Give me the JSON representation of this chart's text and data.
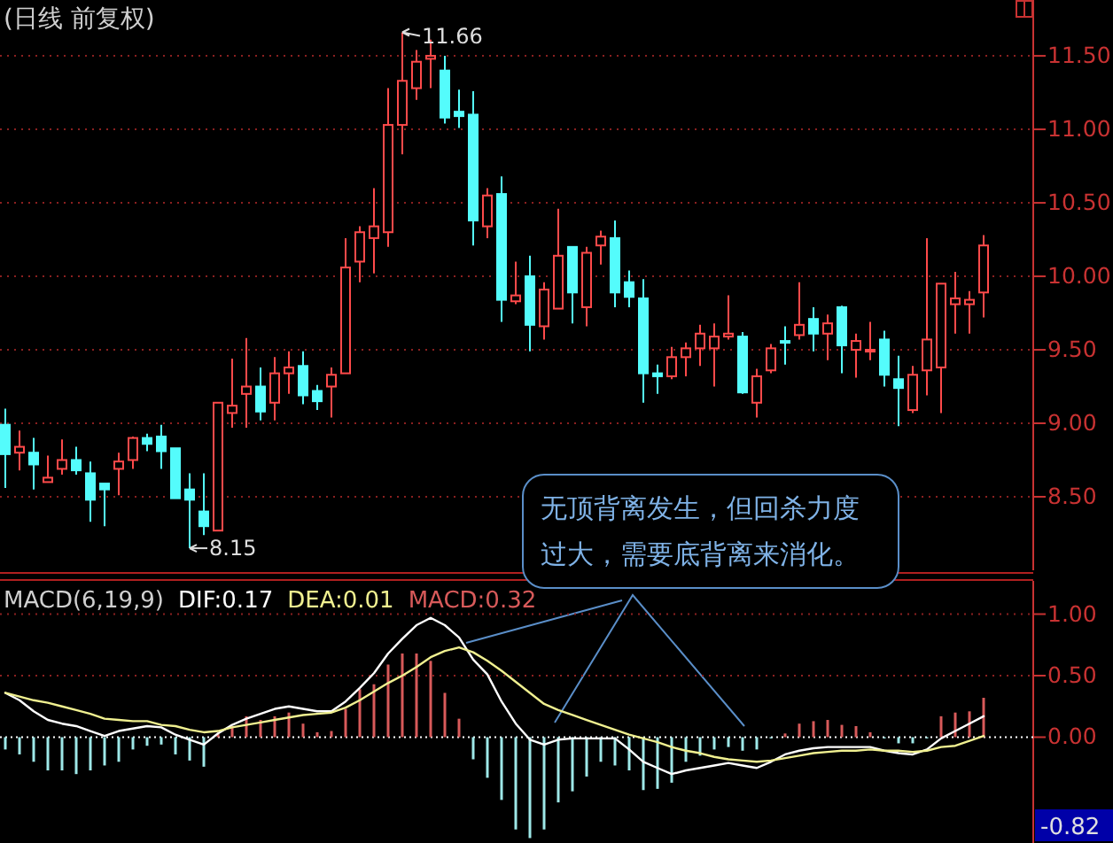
{
  "chart_data": [
    {
      "type": "candlestick",
      "title": "(日线 前复权)",
      "categories": [
        null,
        null,
        null,
        null,
        null,
        null,
        null,
        null,
        null,
        null,
        null,
        null,
        null,
        null,
        null,
        null,
        null,
        null,
        null,
        null,
        null,
        null,
        null,
        null,
        null,
        null,
        null,
        null,
        null,
        null,
        null,
        null,
        null,
        null,
        null,
        null,
        null,
        null,
        null,
        null,
        null,
        null,
        null,
        null,
        null,
        null,
        null,
        null,
        null,
        null,
        null,
        null,
        null,
        null,
        null,
        null,
        null,
        null,
        null,
        null,
        null,
        null,
        null,
        null,
        null,
        null,
        null,
        null,
        null,
        null
      ],
      "ohlc": [
        [
          8.99,
          9.1,
          8.56,
          8.79
        ],
        [
          8.8,
          8.95,
          8.68,
          8.84
        ],
        [
          8.8,
          8.9,
          8.55,
          8.72
        ],
        [
          8.6,
          8.78,
          8.6,
          8.63
        ],
        [
          8.69,
          8.89,
          8.65,
          8.75
        ],
        [
          8.75,
          8.84,
          8.65,
          8.68
        ],
        [
          8.66,
          8.74,
          8.33,
          8.48
        ],
        [
          8.59,
          8.59,
          8.3,
          8.55
        ],
        [
          8.69,
          8.8,
          8.51,
          8.74
        ],
        [
          8.75,
          8.91,
          8.69,
          8.9
        ],
        [
          8.9,
          8.93,
          8.81,
          8.86
        ],
        [
          8.91,
          8.99,
          8.69,
          8.81
        ],
        [
          8.83,
          8.83,
          8.49,
          8.49
        ],
        [
          8.55,
          8.66,
          8.15,
          8.48
        ],
        [
          8.4,
          8.66,
          8.24,
          8.3
        ],
        [
          8.27,
          9.14,
          8.27,
          9.14
        ],
        [
          9.07,
          9.44,
          8.97,
          9.12
        ],
        [
          9.2,
          9.58,
          8.97,
          9.25
        ],
        [
          9.25,
          9.38,
          9.02,
          9.08
        ],
        [
          9.14,
          9.45,
          9.02,
          9.34
        ],
        [
          9.34,
          9.49,
          9.2,
          9.38
        ],
        [
          9.39,
          9.49,
          9.13,
          9.19
        ],
        [
          9.22,
          9.26,
          9.09,
          9.15
        ],
        [
          9.25,
          9.38,
          9.04,
          9.33
        ],
        [
          9.34,
          10.26,
          9.34,
          10.06
        ],
        [
          10.1,
          10.34,
          9.96,
          10.3
        ],
        [
          10.26,
          10.6,
          10.02,
          10.34
        ],
        [
          10.3,
          11.28,
          10.2,
          11.03
        ],
        [
          11.03,
          11.66,
          10.83,
          11.33
        ],
        [
          11.28,
          11.54,
          11.2,
          11.46
        ],
        [
          11.48,
          11.61,
          11.28,
          11.5
        ],
        [
          11.4,
          11.5,
          11.04,
          11.08
        ],
        [
          11.12,
          11.27,
          11.01,
          11.09
        ],
        [
          11.1,
          11.26,
          10.21,
          10.38
        ],
        [
          10.34,
          10.6,
          10.26,
          10.55
        ],
        [
          10.56,
          10.68,
          9.69,
          9.84
        ],
        [
          9.83,
          10.1,
          9.81,
          9.87
        ],
        [
          10.0,
          10.14,
          9.49,
          9.67
        ],
        [
          9.66,
          9.96,
          9.57,
          9.91
        ],
        [
          9.78,
          10.46,
          9.78,
          10.14
        ],
        [
          10.2,
          10.2,
          9.68,
          9.89
        ],
        [
          9.79,
          10.2,
          9.66,
          10.16
        ],
        [
          10.21,
          10.31,
          10.08,
          10.27
        ],
        [
          10.26,
          10.38,
          9.79,
          9.89
        ],
        [
          9.96,
          10.04,
          9.79,
          9.86
        ],
        [
          9.85,
          9.98,
          9.14,
          9.34
        ],
        [
          9.34,
          9.4,
          9.2,
          9.32
        ],
        [
          9.32,
          9.52,
          9.3,
          9.45
        ],
        [
          9.45,
          9.55,
          9.32,
          9.51
        ],
        [
          9.51,
          9.67,
          9.39,
          9.61
        ],
        [
          9.51,
          9.68,
          9.25,
          9.59
        ],
        [
          9.59,
          9.87,
          9.57,
          9.61
        ],
        [
          9.59,
          9.62,
          9.2,
          9.21
        ],
        [
          9.14,
          9.37,
          9.04,
          9.32
        ],
        [
          9.36,
          9.54,
          9.34,
          9.51
        ],
        [
          9.56,
          9.66,
          9.4,
          9.55
        ],
        [
          9.6,
          9.96,
          9.57,
          9.67
        ],
        [
          9.71,
          9.79,
          9.49,
          9.61
        ],
        [
          9.61,
          9.74,
          9.43,
          9.68
        ],
        [
          9.79,
          9.8,
          9.34,
          9.53
        ],
        [
          9.5,
          9.61,
          9.31,
          9.56
        ],
        [
          9.49,
          9.69,
          9.43,
          9.5
        ],
        [
          9.57,
          9.63,
          9.25,
          9.33
        ],
        [
          9.3,
          9.46,
          8.98,
          9.24
        ],
        [
          9.09,
          9.39,
          9.07,
          9.33
        ],
        [
          9.36,
          10.26,
          9.19,
          9.57
        ],
        [
          9.38,
          9.95,
          9.07,
          9.95
        ],
        [
          9.81,
          10.03,
          9.61,
          9.85
        ],
        [
          9.81,
          9.9,
          9.61,
          9.84
        ],
        [
          9.89,
          10.28,
          9.72,
          10.21
        ]
      ],
      "ylim": [
        8.0,
        11.88
      ],
      "yticks": [
        {
          "value": 8.5,
          "label": "8.50"
        },
        {
          "value": 9,
          "label": "9.00"
        },
        {
          "value": 9.5,
          "label": "9.50"
        },
        {
          "value": 10,
          "label": "10.00"
        },
        {
          "value": 10.5,
          "label": "10.50"
        },
        {
          "value": 11,
          "label": "11.00"
        },
        {
          "value": 11.5,
          "label": "11.50"
        }
      ],
      "grid": "y",
      "tick_labels": "y",
      "annotations": [
        "11.66",
        "8.15",
        "无顶背离发生，但回杀力度过大，需要底背离来消化。"
      ]
    },
    {
      "type": "bar",
      "title": "MACD(6,19,9)",
      "categories": [
        null,
        null,
        null,
        null,
        null,
        null,
        null,
        null,
        null,
        null,
        null,
        null,
        null,
        null,
        null,
        null,
        null,
        null,
        null,
        null,
        null,
        null,
        null,
        null,
        null,
        null,
        null,
        null,
        null,
        null,
        null,
        null,
        null,
        null,
        null,
        null,
        null,
        null,
        null,
        null,
        null,
        null,
        null,
        null,
        null,
        null,
        null,
        null,
        null,
        null,
        null,
        null,
        null,
        null,
        null,
        null,
        null,
        null,
        null,
        null,
        null,
        null,
        null,
        null,
        null,
        null,
        null,
        null,
        null,
        null
      ],
      "series": [
        {
          "name": "DIF:0.17",
          "type": "line",
          "color": "#ffffff",
          "values": [
            0.36,
            0.3,
            0.21,
            0.14,
            0.11,
            0.09,
            0.05,
            0.01,
            0.05,
            0.07,
            0.09,
            0.08,
            0.02,
            -0.02,
            -0.06,
            0.03,
            0.1,
            0.15,
            0.19,
            0.23,
            0.25,
            0.23,
            0.21,
            0.21,
            0.29,
            0.4,
            0.52,
            0.68,
            0.8,
            0.91,
            0.97,
            0.91,
            0.81,
            0.63,
            0.51,
            0.29,
            0.11,
            -0.02,
            -0.06,
            -0.02,
            -0.01,
            -0.01,
            -0.01,
            -0.01,
            -0.1,
            -0.2,
            -0.25,
            -0.3,
            -0.27,
            -0.25,
            -0.23,
            -0.21,
            -0.23,
            -0.25,
            -0.2,
            -0.14,
            -0.11,
            -0.09,
            -0.08,
            -0.08,
            -0.08,
            -0.08,
            -0.11,
            -0.13,
            -0.14,
            -0.1,
            -0.01,
            0.05,
            0.11,
            0.17
          ]
        },
        {
          "name": "DEA:0.01",
          "type": "line",
          "color": "#f0f090",
          "values": [
            0.36,
            0.33,
            0.3,
            0.28,
            0.25,
            0.22,
            0.19,
            0.15,
            0.14,
            0.13,
            0.13,
            0.1,
            0.09,
            0.06,
            0.04,
            0.05,
            0.08,
            0.1,
            0.12,
            0.14,
            0.16,
            0.18,
            0.19,
            0.2,
            0.24,
            0.3,
            0.37,
            0.44,
            0.5,
            0.57,
            0.65,
            0.7,
            0.73,
            0.69,
            0.62,
            0.54,
            0.45,
            0.36,
            0.27,
            0.22,
            0.18,
            0.14,
            0.1,
            0.06,
            0.02,
            -0.01,
            -0.04,
            -0.08,
            -0.11,
            -0.13,
            -0.16,
            -0.18,
            -0.19,
            -0.2,
            -0.19,
            -0.17,
            -0.15,
            -0.13,
            -0.12,
            -0.11,
            -0.11,
            -0.1,
            -0.11,
            -0.11,
            -0.12,
            -0.11,
            -0.08,
            -0.07,
            -0.03,
            0.01
          ]
        },
        {
          "name": "MACD:0.32",
          "type": "bar",
          "color": "#d85a5a",
          "values": [
            -0.1,
            -0.14,
            -0.2,
            -0.27,
            -0.27,
            -0.3,
            -0.27,
            -0.23,
            -0.2,
            -0.1,
            -0.07,
            -0.06,
            -0.14,
            -0.19,
            -0.24,
            0.03,
            0.09,
            0.17,
            0.14,
            0.17,
            0.2,
            0.11,
            0.04,
            0.05,
            0.23,
            0.39,
            0.43,
            0.59,
            0.68,
            0.68,
            0.62,
            0.36,
            0.15,
            -0.18,
            -0.33,
            -0.51,
            -0.75,
            -0.82,
            -0.75,
            -0.53,
            -0.44,
            -0.32,
            -0.2,
            -0.23,
            -0.27,
            -0.43,
            -0.42,
            -0.37,
            -0.2,
            -0.15,
            -0.1,
            -0.08,
            -0.11,
            -0.1,
            -0.01,
            0.03,
            0.11,
            0.13,
            0.14,
            0.1,
            0.09,
            0.04,
            -0.01,
            -0.05,
            -0.05,
            -0.01,
            0.17,
            0.2,
            0.21,
            0.32
          ],
          "colors": [
            "#9ee8e8",
            "#9ee8e8",
            "#9ee8e8",
            "#9ee8e8",
            "#9ee8e8",
            "#9ee8e8",
            "#9ee8e8",
            "#9ee8e8",
            "#9ee8e8",
            "#9ee8e8",
            "#9ee8e8",
            "#9ee8e8",
            "#9ee8e8",
            "#9ee8e8",
            "#9ee8e8",
            "#d85a5a",
            "#d85a5a",
            "#d85a5a",
            "#d85a5a",
            "#d85a5a",
            "#d85a5a",
            "#d85a5a",
            "#d85a5a",
            "#d85a5a",
            "#d85a5a",
            "#d85a5a",
            "#d85a5a",
            "#d85a5a",
            "#d85a5a",
            "#d85a5a",
            "#d85a5a",
            "#d85a5a",
            "#d85a5a",
            "#9ee8e8",
            "#9ee8e8",
            "#9ee8e8",
            "#9ee8e8",
            "#9ee8e8",
            "#9ee8e8",
            "#9ee8e8",
            "#9ee8e8",
            "#9ee8e8",
            "#9ee8e8",
            "#9ee8e8",
            "#9ee8e8",
            "#9ee8e8",
            "#9ee8e8",
            "#9ee8e8",
            "#9ee8e8",
            "#9ee8e8",
            "#9ee8e8",
            "#9ee8e8",
            "#9ee8e8",
            "#9ee8e8",
            "#9ee8e8",
            "#d85a5a",
            "#d85a5a",
            "#d85a5a",
            "#d85a5a",
            "#d85a5a",
            "#d85a5a",
            "#d85a5a",
            "#9ee8e8",
            "#9ee8e8",
            "#9ee8e8",
            "#9ee8e8",
            "#d85a5a",
            "#d85a5a",
            "#d85a5a",
            "#d85a5a"
          ]
        }
      ],
      "ylim": [
        -0.86,
        1.27
      ],
      "yticks": [
        {
          "value": 0,
          "label": "0.00"
        },
        {
          "value": 0.5,
          "label": "0.50"
        },
        {
          "value": 1,
          "label": "1.00"
        }
      ],
      "ref_lines": [
        {
          "axis": "y",
          "value": 0,
          "color": "#ffffff",
          "line_style": "dotted"
        }
      ],
      "grid": "y",
      "tick_labels": "y",
      "legend": "top left",
      "annotations": [
        "-0.82"
      ]
    }
  ]
}
